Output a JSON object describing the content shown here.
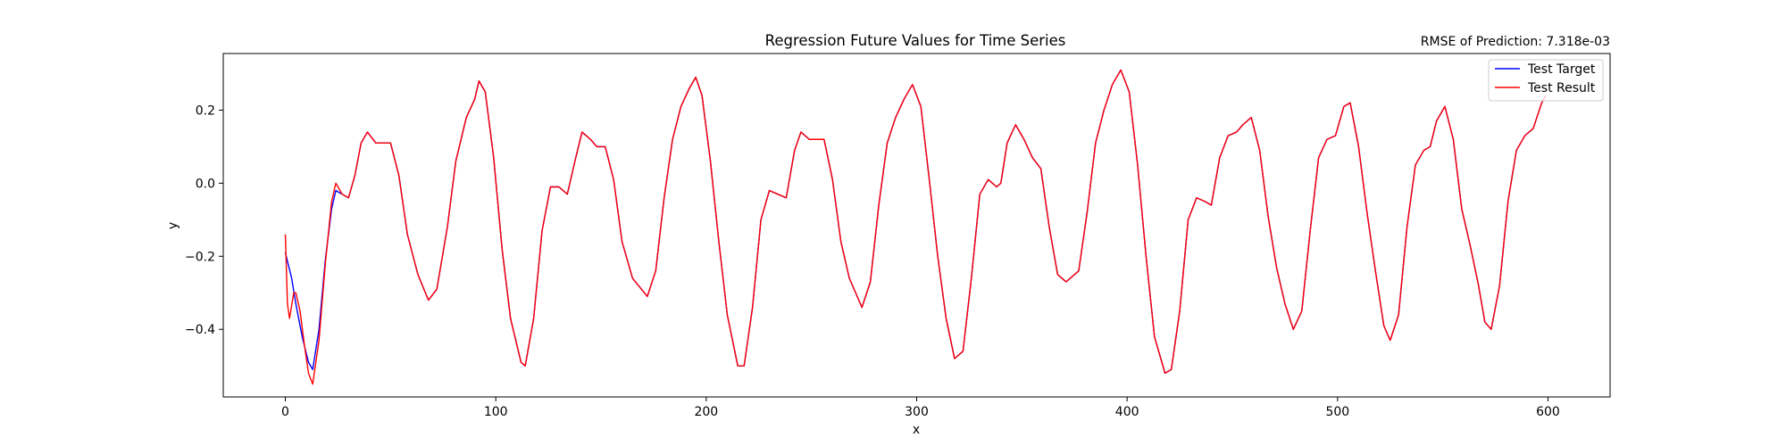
{
  "chart_data": {
    "type": "line",
    "title": "Regression Future Values for Time Series",
    "annotation": "RMSE of Prediction: 7.318e-03",
    "xlabel": "x",
    "ylabel": "y",
    "xlim": [
      -29.5,
      629.5
    ],
    "ylim": [
      -0.585,
      0.355
    ],
    "xticks": [
      0,
      100,
      200,
      300,
      400,
      500,
      600
    ],
    "xtick_labels": [
      "0",
      "100",
      "200",
      "300",
      "400",
      "500",
      "600"
    ],
    "yticks": [
      -0.4,
      -0.2,
      0.0,
      0.2
    ],
    "ytick_labels": [
      "−0.4",
      "−0.2",
      "0.0",
      "0.2"
    ],
    "grid": false,
    "legend_position": "top-right",
    "series": [
      {
        "name": "Test Target",
        "color": "#0000ff",
        "points": [
          [
            0,
            -0.19
          ],
          [
            3,
            -0.26
          ],
          [
            5,
            -0.33
          ],
          [
            8,
            -0.42
          ],
          [
            11,
            -0.49
          ],
          [
            13,
            -0.51
          ],
          [
            16,
            -0.4
          ],
          [
            19,
            -0.21
          ],
          [
            22,
            -0.07
          ],
          [
            24,
            -0.02
          ],
          [
            27,
            -0.03
          ],
          [
            30,
            -0.04
          ],
          [
            33,
            0.02
          ],
          [
            36,
            0.11
          ],
          [
            39,
            0.14
          ],
          [
            43,
            0.11
          ],
          [
            46,
            0.11
          ],
          [
            50,
            0.11
          ],
          [
            54,
            0.02
          ],
          [
            58,
            -0.14
          ],
          [
            63,
            -0.25
          ],
          [
            68,
            -0.32
          ],
          [
            72,
            -0.29
          ],
          [
            77,
            -0.12
          ],
          [
            81,
            0.06
          ],
          [
            86,
            0.18
          ],
          [
            90,
            0.23
          ],
          [
            92,
            0.28
          ],
          [
            95,
            0.25
          ],
          [
            99,
            0.07
          ],
          [
            103,
            -0.18
          ],
          [
            107,
            -0.37
          ],
          [
            112,
            -0.49
          ],
          [
            114,
            -0.5
          ],
          [
            118,
            -0.37
          ],
          [
            122,
            -0.13
          ],
          [
            126,
            -0.01
          ],
          [
            130,
            -0.01
          ],
          [
            134,
            -0.03
          ],
          [
            138,
            0.07
          ],
          [
            141,
            0.14
          ],
          [
            145,
            0.12
          ],
          [
            148,
            0.1
          ],
          [
            152,
            0.1
          ],
          [
            156,
            0.01
          ],
          [
            160,
            -0.16
          ],
          [
            165,
            -0.26
          ],
          [
            172,
            -0.31
          ],
          [
            176,
            -0.24
          ],
          [
            180,
            -0.04
          ],
          [
            184,
            0.12
          ],
          [
            188,
            0.21
          ],
          [
            192,
            0.26
          ],
          [
            195,
            0.29
          ],
          [
            198,
            0.24
          ],
          [
            202,
            0.06
          ],
          [
            206,
            -0.16
          ],
          [
            210,
            -0.36
          ],
          [
            215,
            -0.5
          ],
          [
            218,
            -0.5
          ],
          [
            222,
            -0.34
          ],
          [
            226,
            -0.1
          ],
          [
            230,
            -0.02
          ],
          [
            234,
            -0.03
          ],
          [
            238,
            -0.04
          ],
          [
            242,
            0.09
          ],
          [
            245,
            0.14
          ],
          [
            249,
            0.12
          ],
          [
            252,
            0.12
          ],
          [
            256,
            0.12
          ],
          [
            260,
            0.01
          ],
          [
            264,
            -0.16
          ],
          [
            268,
            -0.26
          ],
          [
            274,
            -0.34
          ],
          [
            278,
            -0.27
          ],
          [
            282,
            -0.06
          ],
          [
            286,
            0.11
          ],
          [
            290,
            0.18
          ],
          [
            294,
            0.23
          ],
          [
            298,
            0.27
          ],
          [
            302,
            0.21
          ],
          [
            306,
            0.01
          ],
          [
            310,
            -0.2
          ],
          [
            314,
            -0.37
          ],
          [
            318,
            -0.48
          ],
          [
            322,
            -0.46
          ],
          [
            326,
            -0.26
          ],
          [
            330,
            -0.03
          ],
          [
            334,
            0.01
          ],
          [
            338,
            -0.01
          ],
          [
            340,
            0.0
          ],
          [
            343,
            0.11
          ],
          [
            347,
            0.16
          ],
          [
            351,
            0.12
          ],
          [
            355,
            0.07
          ],
          [
            359,
            0.04
          ],
          [
            363,
            -0.12
          ],
          [
            367,
            -0.25
          ],
          [
            371,
            -0.27
          ],
          [
            377,
            -0.24
          ],
          [
            381,
            -0.08
          ],
          [
            385,
            0.11
          ],
          [
            389,
            0.2
          ],
          [
            393,
            0.27
          ],
          [
            397,
            0.31
          ],
          [
            401,
            0.25
          ],
          [
            405,
            0.05
          ],
          [
            409,
            -0.2
          ],
          [
            413,
            -0.42
          ],
          [
            418,
            -0.52
          ],
          [
            421,
            -0.51
          ],
          [
            425,
            -0.35
          ],
          [
            429,
            -0.1
          ],
          [
            433,
            -0.04
          ],
          [
            437,
            -0.05
          ],
          [
            440,
            -0.06
          ],
          [
            444,
            0.07
          ],
          [
            448,
            0.13
          ],
          [
            452,
            0.14
          ],
          [
            455,
            0.16
          ],
          [
            459,
            0.18
          ],
          [
            463,
            0.09
          ],
          [
            467,
            -0.09
          ],
          [
            471,
            -0.23
          ],
          [
            475,
            -0.33
          ],
          [
            479,
            -0.4
          ],
          [
            483,
            -0.35
          ],
          [
            487,
            -0.13
          ],
          [
            491,
            0.07
          ],
          [
            495,
            0.12
          ],
          [
            499,
            0.13
          ],
          [
            503,
            0.21
          ],
          [
            506,
            0.22
          ],
          [
            510,
            0.1
          ],
          [
            514,
            -0.08
          ],
          [
            518,
            -0.24
          ],
          [
            522,
            -0.39
          ],
          [
            525,
            -0.43
          ],
          [
            529,
            -0.36
          ],
          [
            533,
            -0.12
          ],
          [
            537,
            0.05
          ],
          [
            541,
            0.09
          ],
          [
            544,
            0.1
          ],
          [
            547,
            0.17
          ],
          [
            551,
            0.21
          ],
          [
            555,
            0.12
          ],
          [
            559,
            -0.07
          ],
          [
            563,
            -0.17
          ],
          [
            567,
            -0.28
          ],
          [
            570,
            -0.38
          ],
          [
            573,
            -0.4
          ],
          [
            577,
            -0.28
          ],
          [
            581,
            -0.05
          ],
          [
            585,
            0.09
          ],
          [
            589,
            0.13
          ],
          [
            593,
            0.15
          ],
          [
            597,
            0.22
          ],
          [
            599,
            0.24
          ]
        ]
      },
      {
        "name": "Test Result",
        "color": "#ff0000",
        "points": [
          [
            0,
            -0.14
          ],
          [
            1,
            -0.33
          ],
          [
            2,
            -0.37
          ],
          [
            4,
            -0.3
          ],
          [
            5,
            -0.3
          ],
          [
            7,
            -0.35
          ],
          [
            9,
            -0.44
          ],
          [
            11,
            -0.52
          ],
          [
            13,
            -0.55
          ],
          [
            16,
            -0.43
          ],
          [
            19,
            -0.22
          ],
          [
            22,
            -0.05
          ],
          [
            24,
            0.0
          ],
          [
            27,
            -0.03
          ],
          [
            30,
            -0.04
          ],
          [
            33,
            0.02
          ],
          [
            36,
            0.11
          ],
          [
            39,
            0.14
          ],
          [
            43,
            0.11
          ],
          [
            46,
            0.11
          ],
          [
            50,
            0.11
          ],
          [
            54,
            0.02
          ],
          [
            58,
            -0.14
          ],
          [
            63,
            -0.25
          ],
          [
            68,
            -0.32
          ],
          [
            72,
            -0.29
          ],
          [
            77,
            -0.12
          ],
          [
            81,
            0.06
          ],
          [
            86,
            0.18
          ],
          [
            90,
            0.23
          ],
          [
            92,
            0.28
          ],
          [
            95,
            0.25
          ],
          [
            99,
            0.07
          ],
          [
            103,
            -0.18
          ],
          [
            107,
            -0.37
          ],
          [
            112,
            -0.49
          ],
          [
            114,
            -0.5
          ],
          [
            118,
            -0.37
          ],
          [
            122,
            -0.13
          ],
          [
            126,
            -0.01
          ],
          [
            130,
            -0.01
          ],
          [
            134,
            -0.03
          ],
          [
            138,
            0.07
          ],
          [
            141,
            0.14
          ],
          [
            145,
            0.12
          ],
          [
            148,
            0.1
          ],
          [
            152,
            0.1
          ],
          [
            156,
            0.01
          ],
          [
            160,
            -0.16
          ],
          [
            165,
            -0.26
          ],
          [
            172,
            -0.31
          ],
          [
            176,
            -0.24
          ],
          [
            180,
            -0.04
          ],
          [
            184,
            0.12
          ],
          [
            188,
            0.21
          ],
          [
            192,
            0.26
          ],
          [
            195,
            0.29
          ],
          [
            198,
            0.24
          ],
          [
            202,
            0.06
          ],
          [
            206,
            -0.16
          ],
          [
            210,
            -0.36
          ],
          [
            215,
            -0.5
          ],
          [
            218,
            -0.5
          ],
          [
            222,
            -0.34
          ],
          [
            226,
            -0.1
          ],
          [
            230,
            -0.02
          ],
          [
            234,
            -0.03
          ],
          [
            238,
            -0.04
          ],
          [
            242,
            0.09
          ],
          [
            245,
            0.14
          ],
          [
            249,
            0.12
          ],
          [
            252,
            0.12
          ],
          [
            256,
            0.12
          ],
          [
            260,
            0.01
          ],
          [
            264,
            -0.16
          ],
          [
            268,
            -0.26
          ],
          [
            274,
            -0.34
          ],
          [
            278,
            -0.27
          ],
          [
            282,
            -0.06
          ],
          [
            286,
            0.11
          ],
          [
            290,
            0.18
          ],
          [
            294,
            0.23
          ],
          [
            298,
            0.27
          ],
          [
            302,
            0.21
          ],
          [
            306,
            0.01
          ],
          [
            310,
            -0.2
          ],
          [
            314,
            -0.37
          ],
          [
            318,
            -0.48
          ],
          [
            322,
            -0.46
          ],
          [
            326,
            -0.26
          ],
          [
            330,
            -0.03
          ],
          [
            334,
            0.01
          ],
          [
            338,
            -0.01
          ],
          [
            340,
            0.0
          ],
          [
            343,
            0.11
          ],
          [
            347,
            0.16
          ],
          [
            351,
            0.12
          ],
          [
            355,
            0.07
          ],
          [
            359,
            0.04
          ],
          [
            363,
            -0.12
          ],
          [
            367,
            -0.25
          ],
          [
            371,
            -0.27
          ],
          [
            377,
            -0.24
          ],
          [
            381,
            -0.08
          ],
          [
            385,
            0.11
          ],
          [
            389,
            0.2
          ],
          [
            393,
            0.27
          ],
          [
            397,
            0.31
          ],
          [
            401,
            0.25
          ],
          [
            405,
            0.05
          ],
          [
            409,
            -0.2
          ],
          [
            413,
            -0.42
          ],
          [
            418,
            -0.52
          ],
          [
            421,
            -0.51
          ],
          [
            425,
            -0.35
          ],
          [
            429,
            -0.1
          ],
          [
            433,
            -0.04
          ],
          [
            437,
            -0.05
          ],
          [
            440,
            -0.06
          ],
          [
            444,
            0.07
          ],
          [
            448,
            0.13
          ],
          [
            452,
            0.14
          ],
          [
            455,
            0.16
          ],
          [
            459,
            0.18
          ],
          [
            463,
            0.09
          ],
          [
            467,
            -0.09
          ],
          [
            471,
            -0.23
          ],
          [
            475,
            -0.33
          ],
          [
            479,
            -0.4
          ],
          [
            483,
            -0.35
          ],
          [
            487,
            -0.13
          ],
          [
            491,
            0.07
          ],
          [
            495,
            0.12
          ],
          [
            499,
            0.13
          ],
          [
            503,
            0.21
          ],
          [
            506,
            0.22
          ],
          [
            510,
            0.1
          ],
          [
            514,
            -0.08
          ],
          [
            518,
            -0.24
          ],
          [
            522,
            -0.39
          ],
          [
            525,
            -0.43
          ],
          [
            529,
            -0.36
          ],
          [
            533,
            -0.12
          ],
          [
            537,
            0.05
          ],
          [
            541,
            0.09
          ],
          [
            544,
            0.1
          ],
          [
            547,
            0.17
          ],
          [
            551,
            0.21
          ],
          [
            555,
            0.12
          ],
          [
            559,
            -0.07
          ],
          [
            563,
            -0.17
          ],
          [
            567,
            -0.28
          ],
          [
            570,
            -0.38
          ],
          [
            573,
            -0.4
          ],
          [
            577,
            -0.28
          ],
          [
            581,
            -0.05
          ],
          [
            585,
            0.09
          ],
          [
            589,
            0.13
          ],
          [
            593,
            0.15
          ],
          [
            597,
            0.22
          ],
          [
            599,
            0.24
          ]
        ]
      }
    ]
  }
}
